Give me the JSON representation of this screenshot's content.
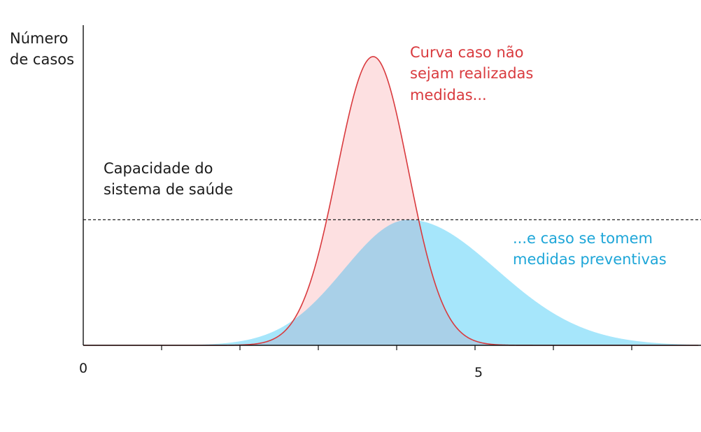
{
  "colors": {
    "red_line": "#d93a3e",
    "red_fill": "#fde0e1",
    "blue_fill": "#a6e6fb",
    "overlap_fill": "#a9d0e8",
    "axis": "#111111",
    "capacity_line": "#222222",
    "blue_text": "#1ea6d8",
    "red_text": "#d93a3e"
  },
  "chart_data": {
    "type": "area",
    "ylabel_lines": [
      "Número",
      "de casos"
    ],
    "xlabel": "",
    "x_tick_labels": [
      {
        "x": 0,
        "label": "0"
      },
      {
        "x": 5,
        "label": "5"
      }
    ],
    "x_ticks": [
      1,
      2,
      3,
      4,
      5,
      6,
      7
    ],
    "xlim": [
      0,
      7.85
    ],
    "ylim": [
      0,
      1.0
    ],
    "grid": false,
    "capacity_line": {
      "y": 0.435,
      "label_lines": [
        "Capacidade do",
        "sistema de saúde"
      ]
    },
    "series": [
      {
        "name_lines": [
          "Curva caso não",
          "sejam realizadas",
          "medidas..."
        ],
        "peak_x": 3.7,
        "peak_y": 1.0,
        "x": [
          0,
          1.5,
          2.0,
          2.5,
          3.0,
          3.3,
          3.5,
          3.7,
          3.9,
          4.1,
          4.4,
          4.8,
          5.2,
          6.0,
          7.0,
          7.85
        ],
        "y": [
          0,
          0.001,
          0.015,
          0.08,
          0.3,
          0.62,
          0.88,
          1.0,
          0.9,
          0.66,
          0.33,
          0.13,
          0.05,
          0.01,
          0.001,
          0
        ]
      },
      {
        "name_lines": [
          "...e caso se tomem",
          "medidas preventivas"
        ],
        "peak_x": 4.15,
        "peak_y": 0.435,
        "x": [
          0,
          1.5,
          2.0,
          2.5,
          3.0,
          3.5,
          4.0,
          4.15,
          4.5,
          5.0,
          5.5,
          6.0,
          7.0,
          7.85
        ],
        "y": [
          0,
          0.001,
          0.01,
          0.05,
          0.15,
          0.3,
          0.42,
          0.435,
          0.4,
          0.29,
          0.17,
          0.08,
          0.015,
          0.003
        ]
      }
    ]
  }
}
